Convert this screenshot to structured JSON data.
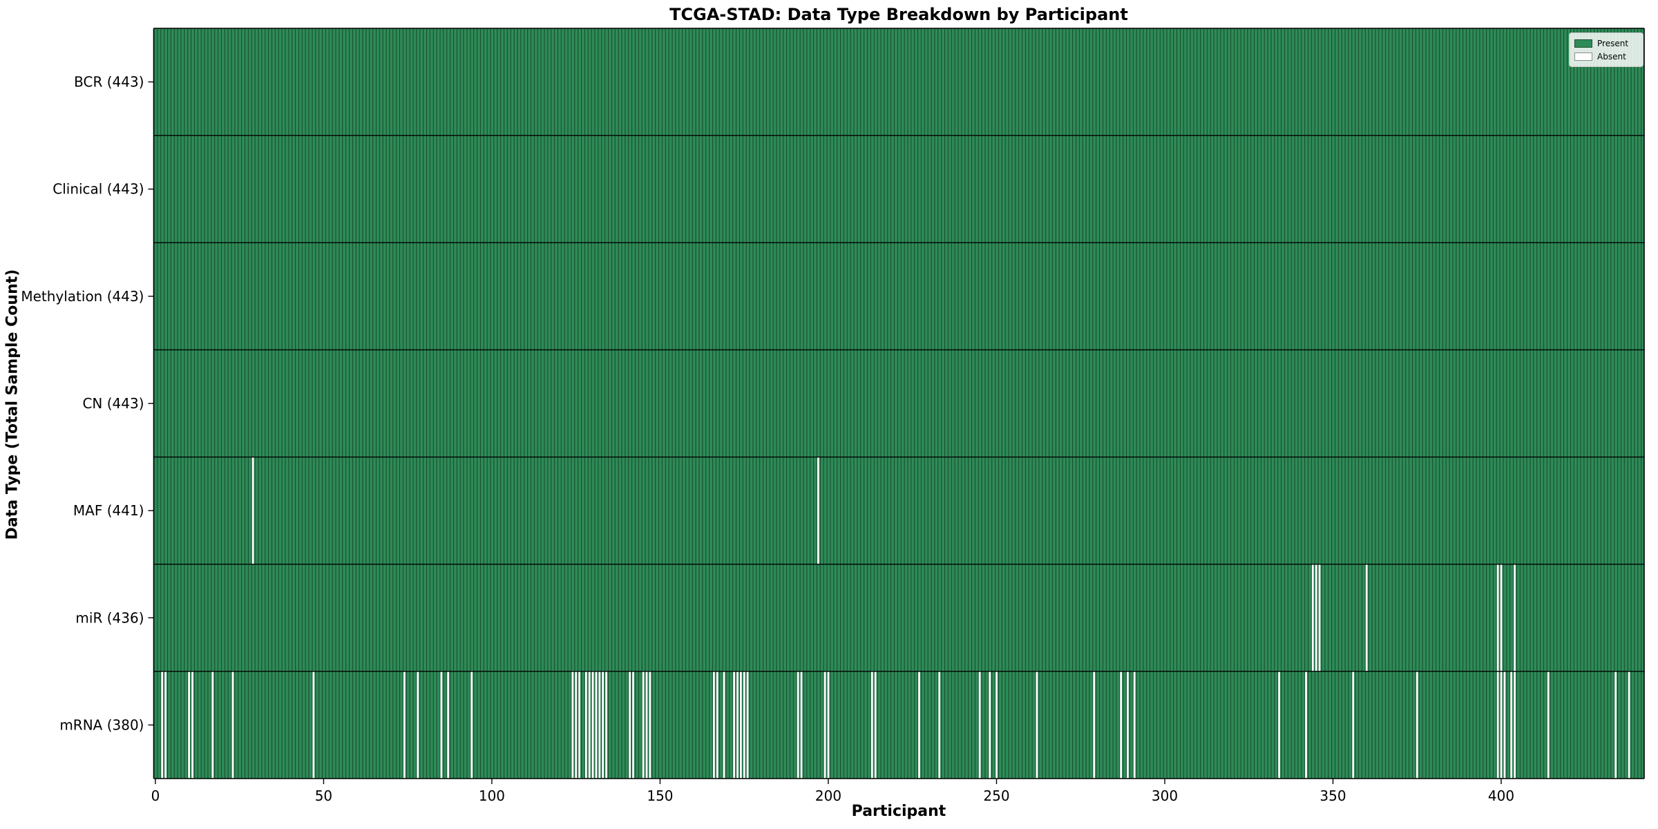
{
  "chart_data": {
    "type": "heatmap",
    "title": "TCGA-STAD: Data Type Breakdown by Participant",
    "xlabel": "Participant",
    "ylabel": "Data Type (Total Sample Count)",
    "n_participants": 443,
    "x_range": [
      -0.5,
      442.5
    ],
    "x_ticks": [
      0,
      50,
      100,
      150,
      200,
      250,
      300,
      350,
      400
    ],
    "grid": false,
    "legend_position": "upper right",
    "legend": [
      {
        "label": "Present",
        "color": "#2e8b57"
      },
      {
        "label": "Absent",
        "color": "#ffffff"
      }
    ],
    "colors": {
      "present": "#2e8b57",
      "absent": "#ffffff",
      "bar_edge": "rgba(0,0,0,0.45)",
      "spine": "#000000",
      "text": "#000000"
    },
    "rows": [
      {
        "data_type": "BCR",
        "label": "BCR (443)",
        "total_samples": 443,
        "absent_participants": []
      },
      {
        "data_type": "Clinical",
        "label": "Clinical (443)",
        "total_samples": 443,
        "absent_participants": []
      },
      {
        "data_type": "Methylation",
        "label": "Methylation (443)",
        "total_samples": 443,
        "absent_participants": []
      },
      {
        "data_type": "CN",
        "label": "CN (443)",
        "total_samples": 443,
        "absent_participants": []
      },
      {
        "data_type": "MAF",
        "label": "MAF (441)",
        "total_samples": 441,
        "absent_participants": [
          29,
          197
        ]
      },
      {
        "data_type": "miR",
        "label": "miR (436)",
        "total_samples": 436,
        "absent_participants": [
          344,
          345,
          346,
          360,
          399,
          400,
          404
        ]
      },
      {
        "data_type": "mRNA",
        "label": "mRNA (380)",
        "total_samples": 380,
        "absent_participants": [
          2,
          3,
          10,
          11,
          17,
          23,
          47,
          74,
          78,
          85,
          87,
          94,
          124,
          125,
          126,
          128,
          129,
          130,
          131,
          132,
          133,
          134,
          141,
          142,
          145,
          146,
          147,
          166,
          167,
          169,
          172,
          173,
          174,
          175,
          176,
          191,
          192,
          199,
          200,
          213,
          214,
          227,
          233,
          245,
          248,
          250,
          262,
          279,
          287,
          289,
          291,
          334,
          342,
          356,
          375,
          399,
          400,
          401,
          403,
          404,
          414,
          434,
          438
        ]
      }
    ]
  }
}
